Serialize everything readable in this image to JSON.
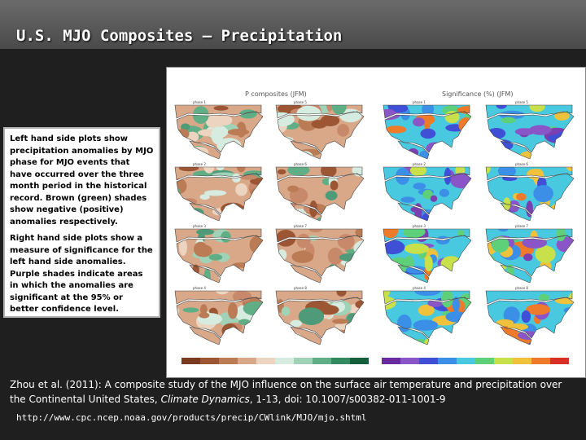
{
  "slide": {
    "title": "U.S. MJO Composites – Precipitation"
  },
  "figure": {
    "left_heading": "P composites (JFM)",
    "right_heading": "Significance (%) (JFM)",
    "phase_labels_left": [
      "phase 1",
      "phase 5",
      "phase 2",
      "phase 6",
      "phase 3",
      "phase 7",
      "phase 4",
      "phase 8"
    ],
    "phase_labels_right": [
      "phase 1",
      "phase 5",
      "phase 2",
      "phase 6",
      "phase 3",
      "phase 7",
      "phase 4",
      "phase 8"
    ]
  },
  "callout": {
    "paragraph1": "Left hand side plots show precipitation anomalies by MJO phase for MJO events that have occurred over the three month period in the historical record. Brown (green) shades show negative (positive) anomalies respectively.",
    "paragraph2": "Right hand side plots show a measure of significance for the left hand side anomalies. Purple shades indicate areas in which the anomalies are significant at the 95% or better confidence level."
  },
  "citation": {
    "authors": "Zhou et al. (2011): A composite study of the MJO influence on the surface air temperature and precipitation over the Continental United States, ",
    "journal": "Climate Dynamics",
    "rest": ", 1-13, doi: 10.1007/s00382-011-1001-9"
  },
  "source_url": "http://www.cpc.ncep.noaa.gov/products/precip/CWlink/MJO/mjo.shtml",
  "colors": {
    "title_bar": "#5a5a5a",
    "background": "#1f1f1f",
    "negative_anomaly": "#c8886a",
    "positive_anomaly": "#4f9a78",
    "significant": "#7a3fb0"
  }
}
